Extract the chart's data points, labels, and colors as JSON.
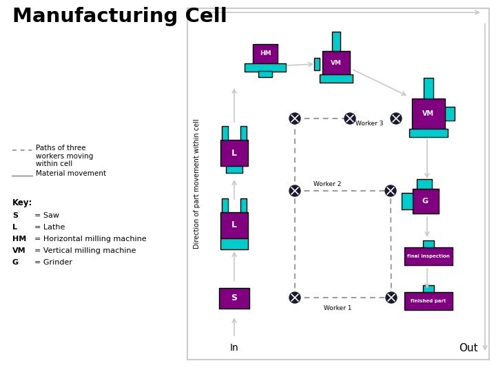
{
  "title": "Manufacturing Cell",
  "bg_color": "#ffffff",
  "purple": "#800080",
  "cyan": "#00CCCC",
  "dark": "#000000",
  "gray_light": "#c8c8c8",
  "worker_color": "#222222",
  "direction_label": "Direction of part movement within cell",
  "legend_paths_label": "Paths of three\nworkers moving\nwithin cell",
  "legend_material_label": "Material movement",
  "key_label": "Key:",
  "key_items": [
    [
      "S",
      "= Saw"
    ],
    [
      "L",
      "= Lathe"
    ],
    [
      "HM",
      "= Horizontal milling machine"
    ],
    [
      "VM",
      "= Vertical milling machine"
    ],
    [
      "G",
      "= Grinder"
    ]
  ],
  "figsize": [
    7.2,
    5.4
  ],
  "dpi": 100
}
